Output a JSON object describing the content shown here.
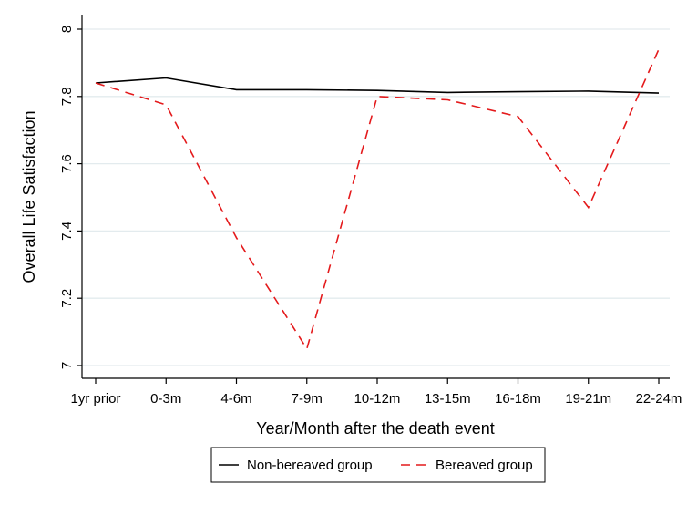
{
  "chart_data": {
    "type": "line",
    "title": "",
    "xlabel": "Year/Month after the death event",
    "ylabel": "Overall Life Satisfaction",
    "categories": [
      "1yr prior",
      "0-3m",
      "4-6m",
      "7-9m",
      "10-12m",
      "13-15m",
      "16-18m",
      "19-21m",
      "22-24m"
    ],
    "ylim": [
      7,
      8
    ],
    "yticks": [
      7,
      7.2,
      7.4,
      7.6,
      7.8,
      8
    ],
    "ytick_labels": [
      "7",
      "7.2",
      "7.4",
      "7.6",
      "7.8",
      "8"
    ],
    "grid": true,
    "legend_position": "bottom",
    "series": [
      {
        "name": "Non-bereaved group",
        "color": "#000000",
        "style": "solid",
        "values": [
          7.84,
          7.855,
          7.82,
          7.82,
          7.818,
          7.812,
          7.814,
          7.816,
          7.81
        ]
      },
      {
        "name": "Bereaved group",
        "color": "#e41a1c",
        "style": "dashed",
        "values": [
          7.84,
          7.775,
          7.38,
          7.05,
          7.8,
          7.79,
          7.74,
          7.47,
          7.94
        ]
      }
    ]
  }
}
